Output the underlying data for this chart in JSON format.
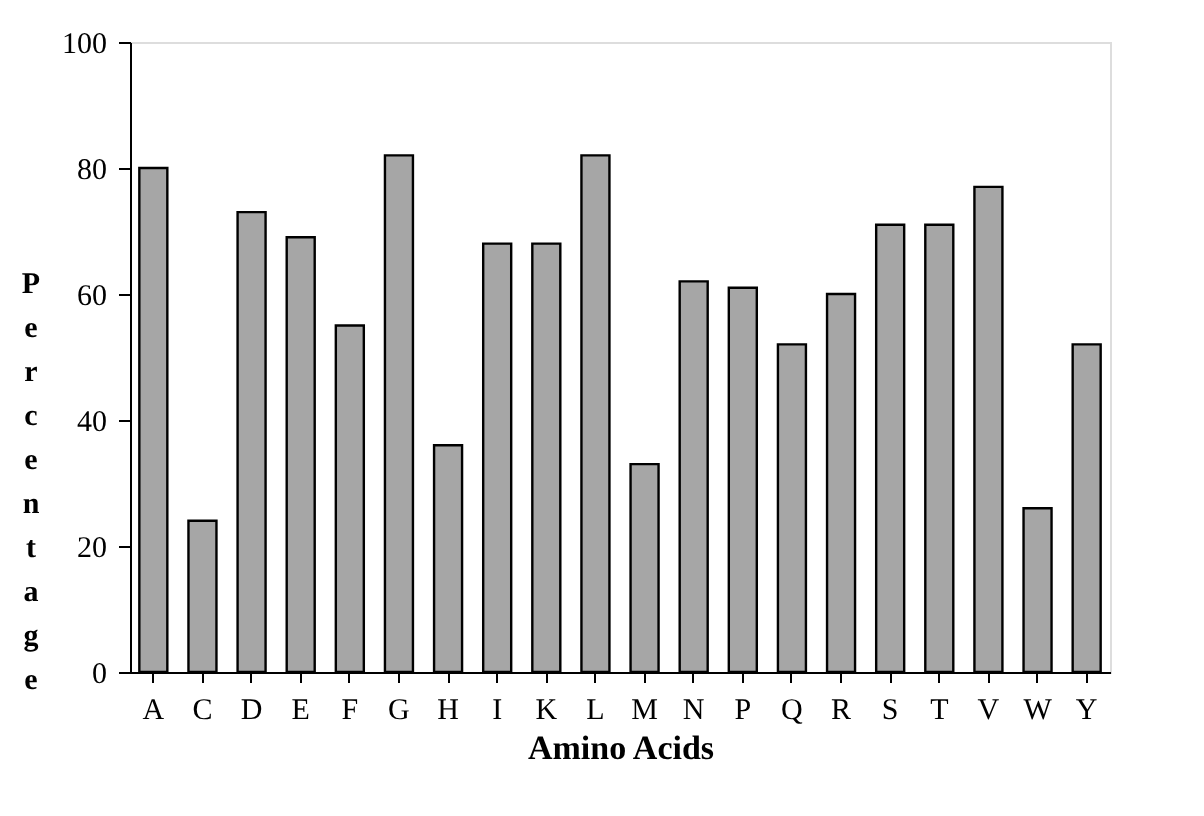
{
  "chart_data": {
    "type": "bar",
    "xlabel": "Amino Acids",
    "ylabel": "Percentage",
    "categories": [
      "A",
      "C",
      "D",
      "E",
      "F",
      "G",
      "H",
      "I",
      "K",
      "L",
      "M",
      "N",
      "P",
      "Q",
      "R",
      "S",
      "T",
      "V",
      "W",
      "Y"
    ],
    "values": [
      80,
      24,
      73,
      69,
      55,
      82,
      36,
      68,
      68,
      82,
      33,
      62,
      61,
      52,
      60,
      71,
      71,
      77,
      26,
      52
    ],
    "color": "#a6a6a6",
    "ylim": [
      0,
      100
    ],
    "yticks": [
      0,
      20,
      40,
      60,
      80,
      100
    ],
    "grid": false
  }
}
